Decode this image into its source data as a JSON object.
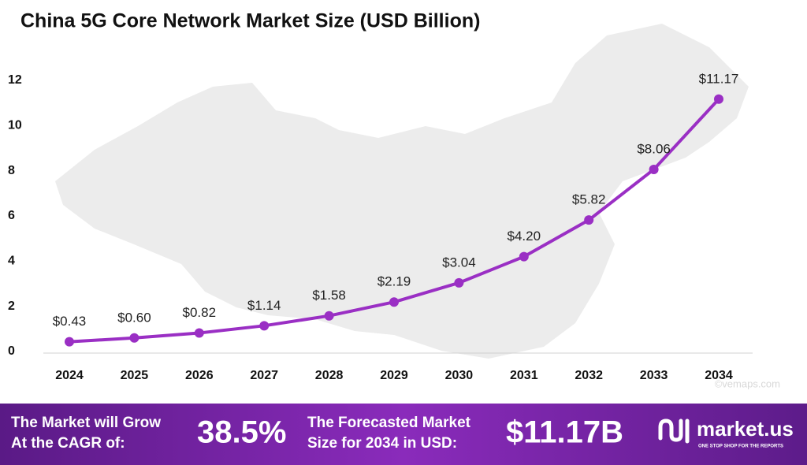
{
  "chart_data": {
    "type": "line",
    "title": "China 5G Core Network Market Size (USD Billion)",
    "categories": [
      "2024",
      "2025",
      "2026",
      "2027",
      "2028",
      "2029",
      "2030",
      "2031",
      "2032",
      "2033",
      "2034"
    ],
    "values": [
      0.43,
      0.6,
      0.82,
      1.14,
      1.58,
      2.19,
      3.04,
      4.2,
      5.82,
      8.06,
      11.17
    ],
    "value_labels": [
      "$0.43",
      "$0.60",
      "$0.82",
      "$1.14",
      "$1.58",
      "$2.19",
      "$3.04",
      "$4.20",
      "$5.82",
      "$8.06",
      "$11.17"
    ],
    "color": "#9a2fc4",
    "ylim": [
      0,
      12
    ],
    "yticks": [
      0,
      2,
      4,
      6,
      8,
      10,
      12
    ],
    "grid": false
  },
  "watermark": "©vemaps.com",
  "footer": {
    "cagr_text": [
      "The Market will Grow",
      "At the CAGR of:"
    ],
    "cagr_value": "38.5%",
    "forecast_text": [
      "The Forecasted Market",
      "Size for 2034 in USD:"
    ],
    "forecast_value": "$11.17B",
    "brand": "market.us",
    "tagline": "ONE STOP SHOP FOR THE REPORTS"
  }
}
